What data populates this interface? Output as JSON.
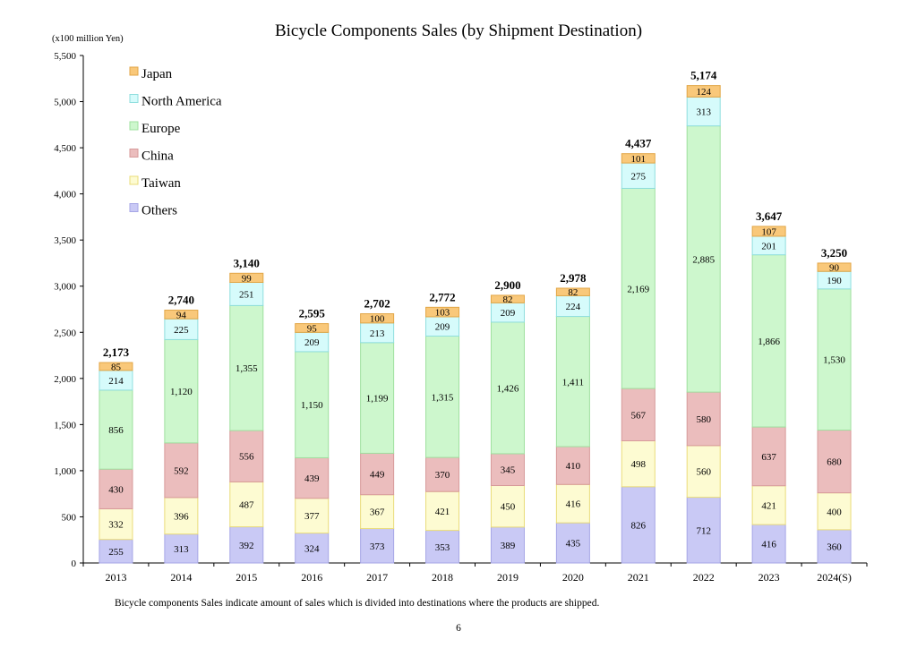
{
  "page": {
    "footnote": "Bicycle components Sales indicate amount of sales which is divided into destinations where the products are shipped.",
    "page_number": "6"
  },
  "chart_data": {
    "type": "bar",
    "stacked": true,
    "title": "Bicycle Components Sales (by Shipment Destination)",
    "unit_label": "(x100 million Yen)",
    "categories": [
      "2013",
      "2014",
      "2015",
      "2016",
      "2017",
      "2018",
      "2019",
      "2020",
      "2021",
      "2022",
      "2023",
      "2024(S)"
    ],
    "ylim": [
      0,
      5500
    ],
    "yticks": [
      0,
      500,
      1000,
      1500,
      2000,
      2500,
      3000,
      3500,
      4000,
      4500,
      5000,
      5500
    ],
    "ytick_labels": [
      "0",
      "500",
      "1,000",
      "1,500",
      "2,000",
      "2,500",
      "3,000",
      "3,500",
      "4,000",
      "4,500",
      "5,000",
      "5,500"
    ],
    "grid": false,
    "legend_position": "top-left",
    "totals": [
      2173,
      2740,
      3140,
      2595,
      2702,
      2772,
      2900,
      2978,
      4437,
      5174,
      3647,
      3250
    ],
    "total_labels": [
      "2,173",
      "2,740",
      "3,140",
      "2,595",
      "2,702",
      "2,772",
      "2,900",
      "2,978",
      "4,437",
      "5,174",
      "3,647",
      "3,250"
    ],
    "series": [
      {
        "name": "Others",
        "color": "#c9c9f5",
        "stroke": "#a6a6e6",
        "values": [
          255,
          313,
          392,
          324,
          373,
          353,
          389,
          435,
          826,
          712,
          416,
          360
        ],
        "labels": [
          "255",
          "313",
          "392",
          "324",
          "373",
          "353",
          "389",
          "435",
          "826",
          "712",
          "416",
          "360"
        ]
      },
      {
        "name": "Taiwan",
        "color": "#fdfbd2",
        "stroke": "#eadc7a",
        "values": [
          332,
          396,
          487,
          377,
          367,
          421,
          450,
          416,
          498,
          560,
          421,
          400
        ],
        "labels": [
          "332",
          "396",
          "487",
          "377",
          "367",
          "421",
          "450",
          "416",
          "498",
          "560",
          "421",
          "400"
        ]
      },
      {
        "name": "China",
        "color": "#ebbdbd",
        "stroke": "#d79a9a",
        "values": [
          430,
          592,
          556,
          439,
          449,
          370,
          345,
          410,
          567,
          580,
          637,
          680
        ],
        "labels": [
          "430",
          "592",
          "556",
          "439",
          "449",
          "370",
          "345",
          "410",
          "567",
          "580",
          "637",
          "680"
        ]
      },
      {
        "name": "Europe",
        "color": "#cdf7cd",
        "stroke": "#9fe09f",
        "values": [
          856,
          1120,
          1355,
          1150,
          1199,
          1315,
          1426,
          1411,
          2169,
          2885,
          1866,
          1530
        ],
        "labels": [
          "856",
          "1,120",
          "1,355",
          "1,150",
          "1,199",
          "1,315",
          "1,426",
          "1,411",
          "2,169",
          "2,885",
          "1,866",
          "1,530"
        ]
      },
      {
        "name": "North America",
        "color": "#d6fbfb",
        "stroke": "#8fdede",
        "values": [
          214,
          225,
          251,
          209,
          213,
          209,
          209,
          224,
          275,
          313,
          201,
          190
        ],
        "labels": [
          "214",
          "225",
          "251",
          "209",
          "213",
          "209",
          "209",
          "224",
          "275",
          "313",
          "201",
          "190"
        ]
      },
      {
        "name": "Japan",
        "color": "#f9c87a",
        "stroke": "#e2a647",
        "values": [
          85,
          94,
          99,
          95,
          100,
          103,
          82,
          82,
          101,
          124,
          107,
          90
        ],
        "labels": [
          "85",
          "94",
          "99",
          "95",
          "100",
          "103",
          "82",
          "82",
          "101",
          "124",
          "107",
          "90"
        ]
      }
    ],
    "legend_order": [
      "Japan",
      "North America",
      "Europe",
      "China",
      "Taiwan",
      "Others"
    ]
  }
}
